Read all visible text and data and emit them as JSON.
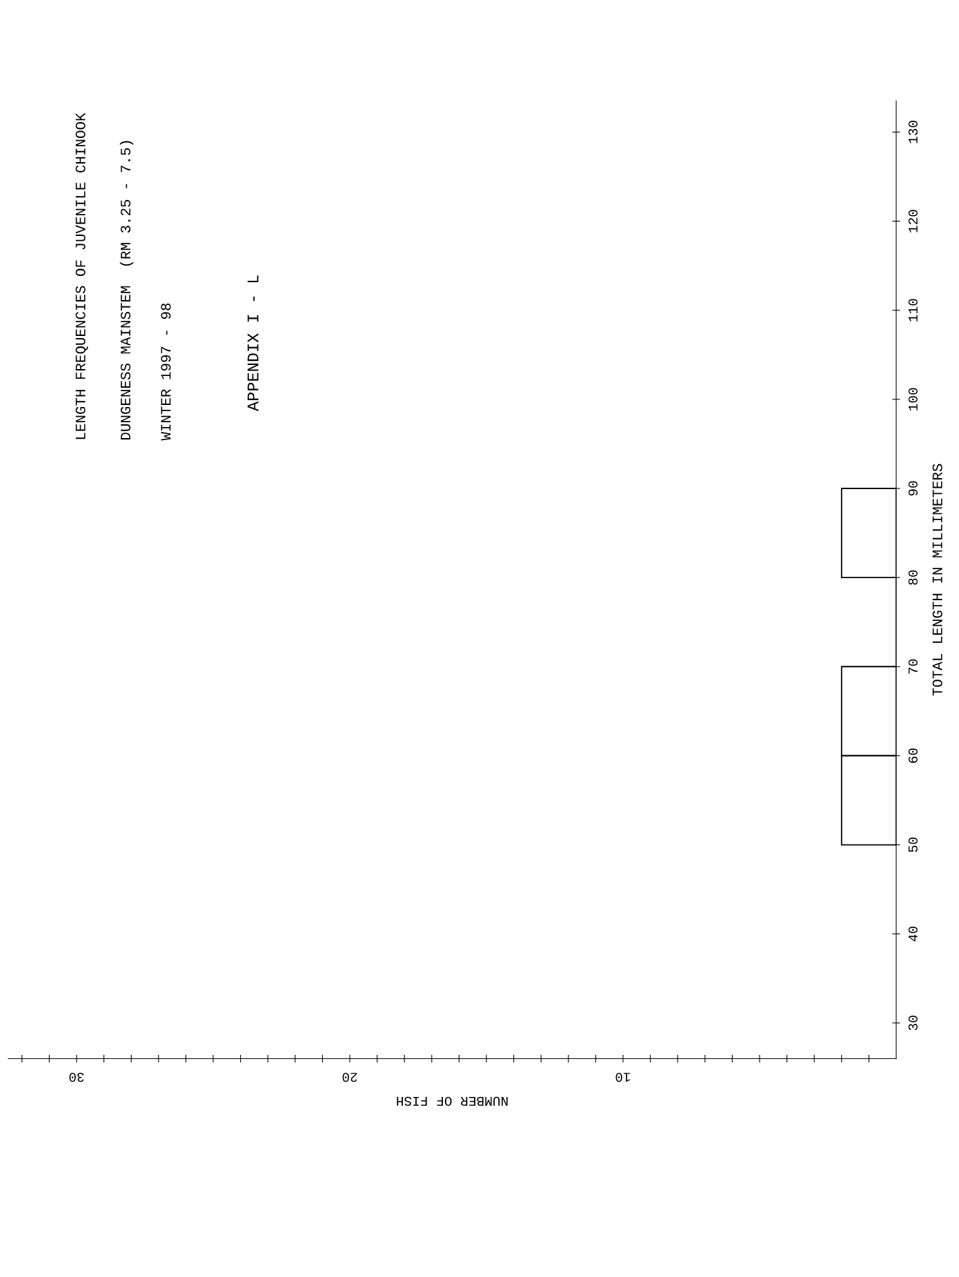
{
  "chart_data": {
    "type": "histogram",
    "orientation": "horizontal",
    "title": "LENGTH FREQUENCIES OF JUVENILE CHINOOK",
    "subtitle": "DUNGENESS MAINSTEM  (RM 3.25 - 7.5)",
    "annotations": [
      "WINTER 1997 - 98",
      "APPENDIX I - L"
    ],
    "xlabel": "NUMBER OF FISH",
    "ylabel": "TOTAL LENGTH IN MILLIMETERS",
    "bins": [
      50,
      60,
      70,
      80,
      90
    ],
    "values": [
      2,
      2,
      0,
      2
    ],
    "color": "#000000",
    "xlim": [
      32.5,
      0
    ],
    "ylim": [
      26,
      133.5
    ],
    "xticks": [
      {
        "value": 1,
        "label": null
      },
      {
        "value": 2,
        "label": null
      },
      {
        "value": 3,
        "label": null
      },
      {
        "value": 4,
        "label": null
      },
      {
        "value": 5,
        "label": null
      },
      {
        "value": 6,
        "label": null
      },
      {
        "value": 7,
        "label": null
      },
      {
        "value": 8,
        "label": null
      },
      {
        "value": 9,
        "label": null
      },
      10,
      {
        "value": 11,
        "label": null
      },
      {
        "value": 12,
        "label": null
      },
      {
        "value": 13,
        "label": null
      },
      {
        "value": 14,
        "label": null
      },
      {
        "value": 15,
        "label": null
      },
      {
        "value": 16,
        "label": null
      },
      {
        "value": 17,
        "label": null
      },
      {
        "value": 18,
        "label": null
      },
      {
        "value": 19,
        "label": null
      },
      20,
      {
        "value": 21,
        "label": null
      },
      {
        "value": 22,
        "label": null
      },
      {
        "value": 23,
        "label": null
      },
      {
        "value": 24,
        "label": null
      },
      {
        "value": 25,
        "label": null
      },
      {
        "value": 26,
        "label": null
      },
      {
        "value": 27,
        "label": null
      },
      {
        "value": 28,
        "label": null
      },
      {
        "value": 29,
        "label": null
      },
      30,
      {
        "value": 31,
        "label": null
      },
      {
        "value": 32,
        "label": null
      }
    ],
    "yticks": [
      30,
      40,
      50,
      60,
      70,
      80,
      90,
      100,
      110,
      120,
      130
    ],
    "grid": false
  }
}
